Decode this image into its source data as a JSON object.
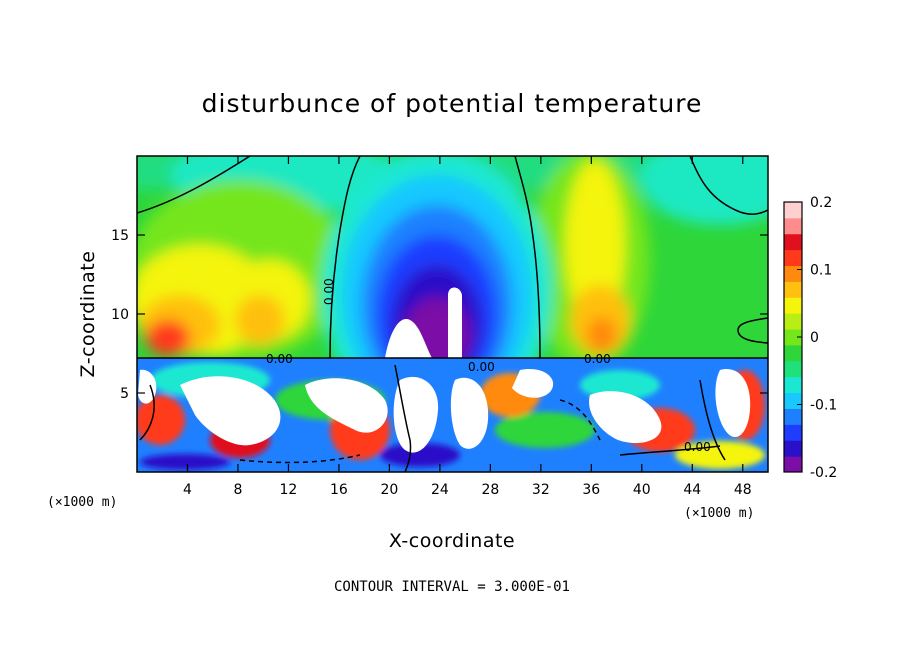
{
  "chart_data": {
    "type": "heatmap",
    "title": "disturbunce of potential temperature",
    "xlabel": "X-coordinate",
    "ylabel": "Z-coordinate",
    "x_unit_label": "(×1000 m)",
    "x_unit_label_right": "(×1000 m)",
    "xlim": [
      0,
      50
    ],
    "ylim": [
      0,
      20
    ],
    "x_ticks": [
      4,
      8,
      12,
      16,
      20,
      24,
      28,
      32,
      36,
      40,
      44,
      48
    ],
    "y_ticks": [
      5,
      10,
      15
    ],
    "colorbar": {
      "range": [
        -0.2,
        0.2
      ],
      "ticks": [
        "0.2",
        "0.1",
        "0",
        "-0.1",
        "-0.2"
      ],
      "tick_values": [
        0.2,
        0.1,
        0,
        -0.1,
        -0.2
      ],
      "colors": [
        "#7b0ea6",
        "#2a10c8",
        "#1f3cff",
        "#1f80ff",
        "#18c8ff",
        "#1ae8d2",
        "#1fe07a",
        "#2ed63a",
        "#74e61a",
        "#b8ee14",
        "#f4f40c",
        "#ffc010",
        "#ff8a10",
        "#ff3a1a",
        "#e0101e",
        "#ff8c8c",
        "#ffd0d0"
      ]
    },
    "contour_label": "0.00",
    "footer": "CONTOUR INTERVAL = 3.000E-01"
  }
}
